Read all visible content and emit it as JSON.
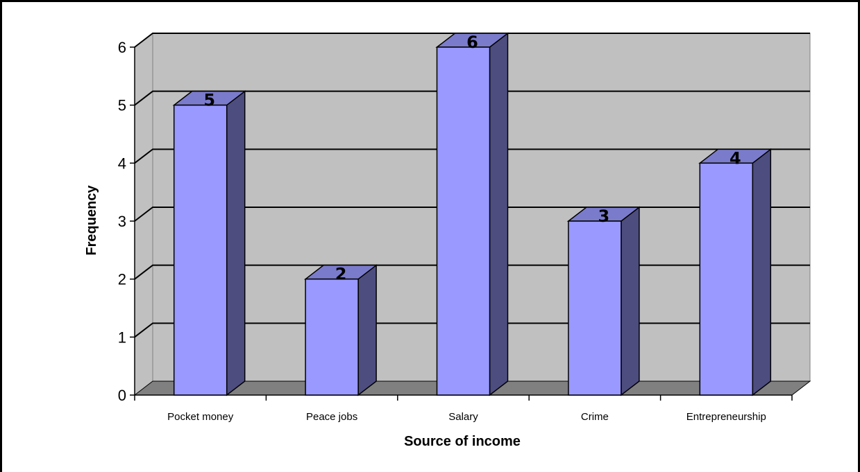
{
  "chart_data": {
    "type": "bar",
    "categories": [
      "Pocket money",
      "Peace jobs",
      "Salary",
      "Crime",
      "Entrepreneurship"
    ],
    "values": [
      5,
      2,
      6,
      3,
      4
    ],
    "data_labels": [
      "5",
      "2",
      "6",
      "3",
      "4"
    ],
    "xlabel": "Source of income",
    "ylabel": "Frequency",
    "ylim": [
      0,
      6
    ],
    "yticks": [
      "0",
      "1",
      "2",
      "3",
      "4",
      "5",
      "6"
    ],
    "grid": true,
    "style": "3d-column",
    "colors": {
      "bar_front": "#9999ff",
      "bar_side": "#4d4d80",
      "bar_top": "#7b7bcc",
      "wall": "#c0c0c0",
      "floor": "#808080",
      "grid": "#000000"
    }
  }
}
